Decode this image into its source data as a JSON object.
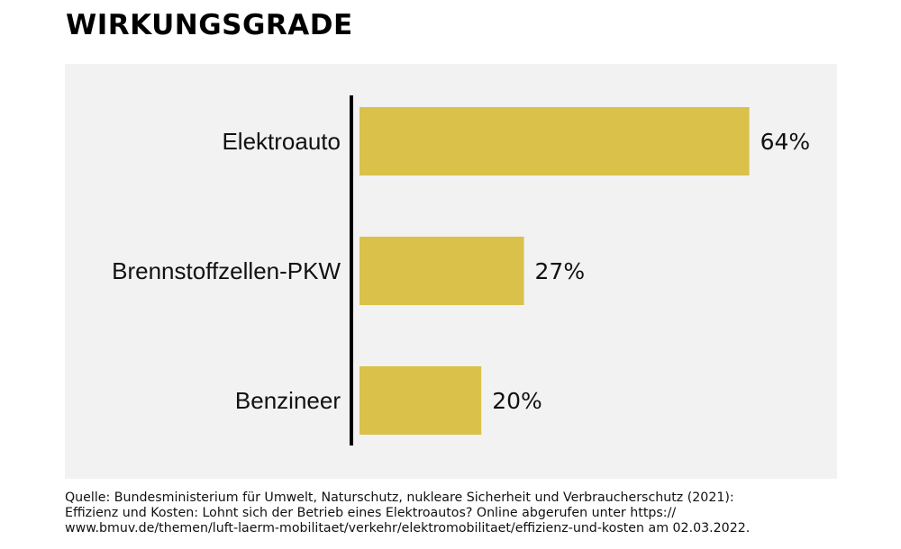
{
  "title": "WIRKUNGSGRADE",
  "chart_data": {
    "type": "bar",
    "orientation": "horizontal",
    "categories": [
      "Elektroauto",
      "Brennstoffzellen-PKW",
      "Benzineer"
    ],
    "values": [
      64,
      27,
      20
    ],
    "value_labels": [
      "64%",
      "27%",
      "20%"
    ],
    "unit": "%",
    "title": "WIRKUNGSGRADE",
    "xlabel": "",
    "ylabel": "",
    "xlim": [
      0,
      100
    ],
    "grid": false,
    "legend": "none",
    "bar_color": "#d9c14a",
    "background_color": "#f2f2f2"
  },
  "source": {
    "lines": [
      "Quelle: Bundesministerium für Umwelt, Naturschutz, nukleare Sicherheit und Verbraucherschutz (2021):",
      "Effizienz und Kosten: Lohnt sich der Betrieb eines Elektroautos? Online abgerufen unter https://",
      "www.bmuv.de/themen/luft-laerm-mobilitaet/verkehr/elektromobilitaet/effizienz-und-kosten am 02.03.2022."
    ]
  }
}
